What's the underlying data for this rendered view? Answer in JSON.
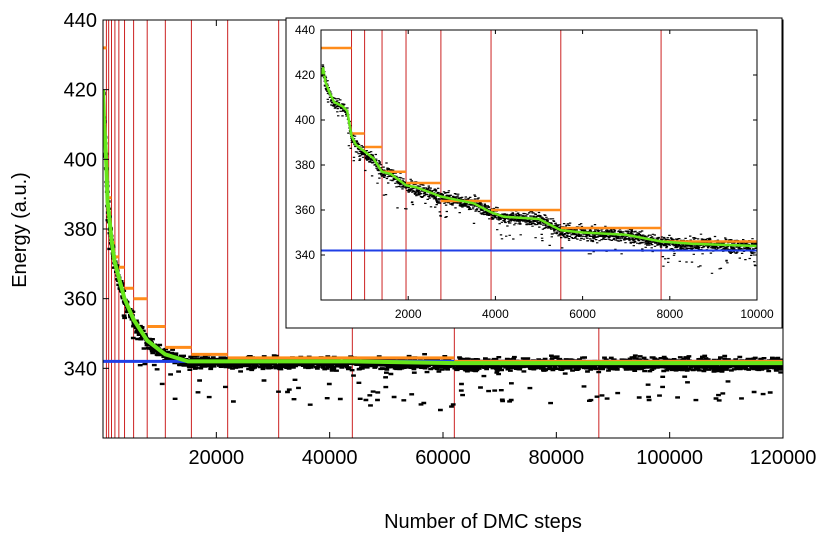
{
  "colors": {
    "noisy": "#000000",
    "smoothed": "#66e61a",
    "step": "#ff8c1a",
    "reference": "#1f3fe6",
    "vlines": "#cc2222"
  },
  "chart_data": [
    {
      "type": "line",
      "xlabel": "Number of DMC steps",
      "ylabel": "Energy (a.u.)",
      "xlim": [
        0,
        120000
      ],
      "ylim": [
        320,
        440
      ],
      "xticks": [
        "20000",
        "40000",
        "60000",
        "80000",
        "100000",
        "120000"
      ],
      "xtick_values": [
        20000,
        40000,
        60000,
        80000,
        100000,
        120000
      ],
      "yticks": [
        "340",
        "360",
        "380",
        "400",
        "420",
        "440"
      ],
      "ytick_values": [
        340,
        360,
        380,
        400,
        420,
        440
      ],
      "reference_energy": 342,
      "vertical_lines_x": [
        600,
        1000,
        1500,
        2100,
        2800,
        3800,
        5400,
        7800,
        11000,
        15600,
        22000,
        31000,
        44000,
        62000,
        87500
      ],
      "step_series": {
        "x": [
          0,
          600,
          1000,
          1500,
          2100,
          2800,
          3800,
          5400,
          7800,
          11000,
          15600,
          22000,
          31000,
          44000,
          62000,
          87500,
          120000
        ],
        "y": [
          432,
          393,
          389,
          376,
          372,
          369,
          363,
          360,
          352,
          346,
          344,
          343,
          343,
          343,
          342,
          342,
          342
        ]
      },
      "smoothed_series": {
        "x": [
          0,
          200,
          400,
          600,
          800,
          1000,
          1500,
          2000,
          2800,
          3800,
          5400,
          7800,
          11000,
          15000,
          22000,
          30000,
          44000,
          62000,
          68000,
          120000
        ],
        "y": [
          420,
          410,
          405,
          398,
          388,
          385,
          377,
          371,
          366,
          360,
          354,
          348,
          344,
          342,
          342,
          342,
          342,
          341.5,
          341.5,
          341.5
        ]
      }
    },
    {
      "type": "line",
      "xlim": [
        0,
        10000
      ],
      "ylim": [
        320,
        440
      ],
      "xticks": [
        "2000",
        "4000",
        "6000",
        "8000",
        "10000"
      ],
      "xtick_values": [
        2000,
        4000,
        6000,
        8000,
        10000
      ],
      "yticks": [
        "340",
        "360",
        "380",
        "400",
        "420",
        "440"
      ],
      "ytick_values": [
        340,
        360,
        380,
        400,
        420,
        440
      ],
      "reference_energy": 342,
      "vertical_lines_x": [
        700,
        1000,
        1400,
        1950,
        2750,
        3900,
        5500,
        7800
      ],
      "step_series": {
        "x": [
          0,
          700,
          1000,
          1400,
          1950,
          2750,
          3900,
          5500,
          7800,
          10000
        ],
        "y": [
          432,
          394,
          388,
          377,
          372,
          364,
          360,
          352,
          346,
          346
        ]
      },
      "smoothed_series": {
        "x": [
          0,
          50,
          100,
          200,
          300,
          400,
          500,
          600,
          700,
          800,
          1000,
          1200,
          1400,
          1600,
          1950,
          2200,
          2750,
          3000,
          3500,
          3900,
          4200,
          5000,
          5500,
          6000,
          7000,
          7800,
          8500,
          10000
        ],
        "y": [
          420,
          423,
          417,
          412,
          408,
          407,
          406,
          404,
          393,
          389,
          386,
          383,
          377,
          376,
          371,
          370,
          366,
          365,
          363,
          359,
          357,
          356,
          351,
          350,
          349,
          346,
          345,
          344
        ]
      }
    }
  ]
}
